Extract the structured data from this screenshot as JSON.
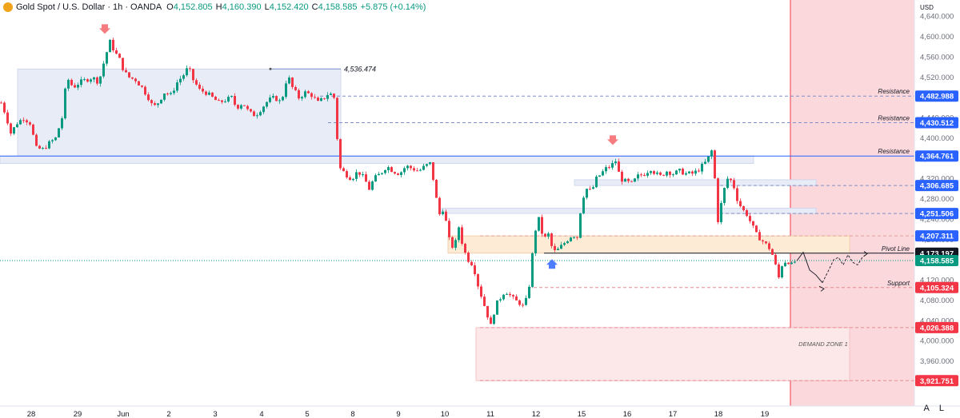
{
  "header": {
    "symbol": "Gold Spot / U.S. Dollar · 1h · OANDA",
    "open_label": "O",
    "open_value": "4,152.805",
    "high_label": "H",
    "high_value": "4,160.390",
    "low_label": "L",
    "low_value": "4,152.420",
    "close_label": "C",
    "close_value": "4,158.585",
    "change": "+5.875 (+0.14%)"
  },
  "price_scale": {
    "currency": "USD",
    "ticks": [
      "4,640.000",
      "4,600.000",
      "4,560.000",
      "4,520.000",
      "4,480.000",
      "4,440.000",
      "4,400.000",
      "4,360.000",
      "4,320.000",
      "4,280.000",
      "4,240.000",
      "4,200.000",
      "4,160.000",
      "4,120.000",
      "4,080.000",
      "4,040.000",
      "4,000.000",
      "3,960.000",
      "3,920.000"
    ]
  },
  "time_scale": {
    "ticks": [
      "28",
      "29",
      "Jun",
      "2",
      "3",
      "4",
      "5",
      "8",
      "9",
      "10",
      "11",
      "12",
      "15",
      "16",
      "17",
      "18",
      "19"
    ]
  },
  "scale_buttons": {
    "auto": "A",
    "log": "L"
  },
  "colors": {
    "up": "#089981",
    "down": "#f23645",
    "resistance": "#2962ff",
    "support": "#f23645",
    "pivot": "#131722",
    "current": "#089981",
    "zone_shade": "#e8ecf7",
    "pivot_zone": "#fdebd6",
    "demand_zone": "#fce8e8",
    "future_area": "#f7b8bf"
  },
  "chart_data": {
    "type": "candlestick",
    "title": "Gold Spot / U.S. Dollar · 1h · OANDA",
    "ylim": [
      3900,
      4660
    ],
    "grid": false,
    "levels": [
      {
        "label": "Resistance",
        "price_label": "4,482.988",
        "value": 4482.988,
        "style": "dashed"
      },
      {
        "label": "Resistance",
        "price_label": "4,430.512",
        "value": 4430.512,
        "style": "dashed"
      },
      {
        "label": "Resistance",
        "price_label": "4,364.761",
        "value": 4364.761,
        "style": "solid"
      },
      {
        "label": "",
        "price_label": "4,306.685",
        "value": 4306.685,
        "style": "dashed"
      },
      {
        "label": "",
        "price_label": "4,251.506",
        "value": 4251.506,
        "style": "dashed"
      },
      {
        "label": "",
        "price_label": "4,207.311",
        "value": 4207.311,
        "style": "dashed"
      },
      {
        "label": "Pivot Line",
        "price_label": "4,173.197",
        "value": 4173.197,
        "style": "solid"
      },
      {
        "label": "",
        "price_label": "4,158.585",
        "value": 4158.585,
        "style": "dotted"
      },
      {
        "label": "Support",
        "price_label": "4,105.324",
        "value": 4105.324,
        "style": "dashed"
      },
      {
        "label": "",
        "price_label": "4,026.388",
        "value": 4026.388,
        "style": "dashed"
      },
      {
        "label": "",
        "price_label": "3,921.751",
        "value": 3921.751,
        "style": "dashed"
      }
    ],
    "annotations": [
      {
        "text": "4,536.474",
        "value": 4536.474
      },
      {
        "text": "DEMAND ZONE 1"
      }
    ],
    "path": [
      [
        0,
        4470
      ],
      [
        6,
        4445
      ],
      [
        12,
        4410
      ],
      [
        20,
        4430
      ],
      [
        28,
        4440
      ],
      [
        36,
        4430
      ],
      [
        44,
        4380
      ],
      [
        52,
        4378
      ],
      [
        60,
        4390
      ],
      [
        68,
        4400
      ],
      [
        76,
        4440
      ],
      [
        82,
        4520
      ],
      [
        90,
        4500
      ],
      [
        98,
        4510
      ],
      [
        106,
        4515
      ],
      [
        114,
        4520
      ],
      [
        122,
        4510
      ],
      [
        130,
        4560
      ],
      [
        136,
        4590
      ],
      [
        142,
        4570
      ],
      [
        148,
        4555
      ],
      [
        154,
        4530
      ],
      [
        160,
        4520
      ],
      [
        168,
        4515
      ],
      [
        176,
        4500
      ],
      [
        184,
        4480
      ],
      [
        190,
        4460
      ],
      [
        196,
        4470
      ],
      [
        204,
        4490
      ],
      [
        212,
        4485
      ],
      [
        220,
        4510
      ],
      [
        228,
        4525
      ],
      [
        234,
        4540
      ],
      [
        240,
        4515
      ],
      [
        248,
        4495
      ],
      [
        256,
        4490
      ],
      [
        264,
        4480
      ],
      [
        272,
        4470
      ],
      [
        280,
        4475
      ],
      [
        288,
        4480
      ],
      [
        294,
        4460
      ],
      [
        302,
        4470
      ],
      [
        310,
        4450
      ],
      [
        318,
        4445
      ],
      [
        326,
        4460
      ],
      [
        334,
        4475
      ],
      [
        342,
        4480
      ],
      [
        350,
        4470
      ],
      [
        358,
        4525
      ],
      [
        364,
        4500
      ],
      [
        372,
        4480
      ],
      [
        380,
        4490
      ],
      [
        388,
        4485
      ],
      [
        396,
        4470
      ],
      [
        404,
        4480
      ],
      [
        410,
        4490
      ],
      [
        416,
        4480
      ],
      [
        420,
        4400
      ],
      [
        424,
        4340
      ],
      [
        430,
        4330
      ],
      [
        438,
        4320
      ],
      [
        446,
        4335
      ],
      [
        454,
        4320
      ],
      [
        460,
        4300
      ],
      [
        466,
        4320
      ],
      [
        474,
        4330
      ],
      [
        482,
        4345
      ],
      [
        490,
        4335
      ],
      [
        498,
        4330
      ],
      [
        506,
        4345
      ],
      [
        514,
        4340
      ],
      [
        522,
        4335
      ],
      [
        530,
        4345
      ],
      [
        536,
        4350
      ],
      [
        540,
        4320
      ],
      [
        544,
        4280
      ],
      [
        548,
        4250
      ],
      [
        552,
        4260
      ],
      [
        556,
        4235
      ],
      [
        560,
        4200
      ],
      [
        566,
        4180
      ],
      [
        572,
        4225
      ],
      [
        578,
        4180
      ],
      [
        584,
        4160
      ],
      [
        590,
        4150
      ],
      [
        596,
        4110
      ],
      [
        602,
        4080
      ],
      [
        608,
        4050
      ],
      [
        612,
        4030
      ],
      [
        618,
        4070
      ],
      [
        624,
        4085
      ],
      [
        630,
        4100
      ],
      [
        636,
        4090
      ],
      [
        642,
        4080
      ],
      [
        648,
        4075
      ],
      [
        654,
        4065
      ],
      [
        660,
        4110
      ],
      [
        664,
        4170
      ],
      [
        668,
        4220
      ],
      [
        672,
        4240
      ],
      [
        678,
        4200
      ],
      [
        684,
        4210
      ],
      [
        690,
        4175
      ],
      [
        696,
        4180
      ],
      [
        702,
        4190
      ],
      [
        708,
        4200
      ],
      [
        714,
        4210
      ],
      [
        720,
        4205
      ],
      [
        726,
        4280
      ],
      [
        732,
        4300
      ],
      [
        738,
        4295
      ],
      [
        744,
        4320
      ],
      [
        750,
        4330
      ],
      [
        756,
        4340
      ],
      [
        762,
        4345
      ],
      [
        768,
        4355
      ],
      [
        774,
        4320
      ],
      [
        780,
        4315
      ],
      [
        788,
        4310
      ],
      [
        796,
        4325
      ],
      [
        804,
        4330
      ],
      [
        812,
        4340
      ],
      [
        818,
        4330
      ],
      [
        824,
        4325
      ],
      [
        832,
        4335
      ],
      [
        840,
        4330
      ],
      [
        848,
        4335
      ],
      [
        856,
        4330
      ],
      [
        864,
        4330
      ],
      [
        870,
        4335
      ],
      [
        876,
        4345
      ],
      [
        882,
        4355
      ],
      [
        888,
        4375
      ],
      [
        892,
        4320
      ],
      [
        895,
        4230
      ],
      [
        900,
        4270
      ],
      [
        904,
        4300
      ],
      [
        908,
        4320
      ],
      [
        914,
        4315
      ],
      [
        920,
        4280
      ],
      [
        926,
        4260
      ],
      [
        932,
        4250
      ],
      [
        938,
        4230
      ],
      [
        944,
        4210
      ],
      [
        950,
        4200
      ],
      [
        956,
        4190
      ],
      [
        962,
        4180
      ],
      [
        966,
        4160
      ],
      [
        972,
        4125
      ],
      [
        976,
        4150
      ],
      [
        982,
        4160
      ],
      [
        988,
        4150
      ],
      [
        994,
        4160
      ]
    ],
    "projection": [
      [
        996,
        4158
      ],
      [
        1004,
        4175
      ],
      [
        1012,
        4140
      ],
      [
        1020,
        4130
      ],
      [
        1028,
        4115
      ],
      [
        1036,
        4140
      ],
      [
        1042,
        4160
      ],
      [
        1048,
        4165
      ],
      [
        1054,
        4150
      ],
      [
        1060,
        4170
      ],
      [
        1066,
        4155
      ],
      [
        1072,
        4150
      ],
      [
        1078,
        4165
      ],
      [
        1084,
        4172
      ]
    ]
  }
}
